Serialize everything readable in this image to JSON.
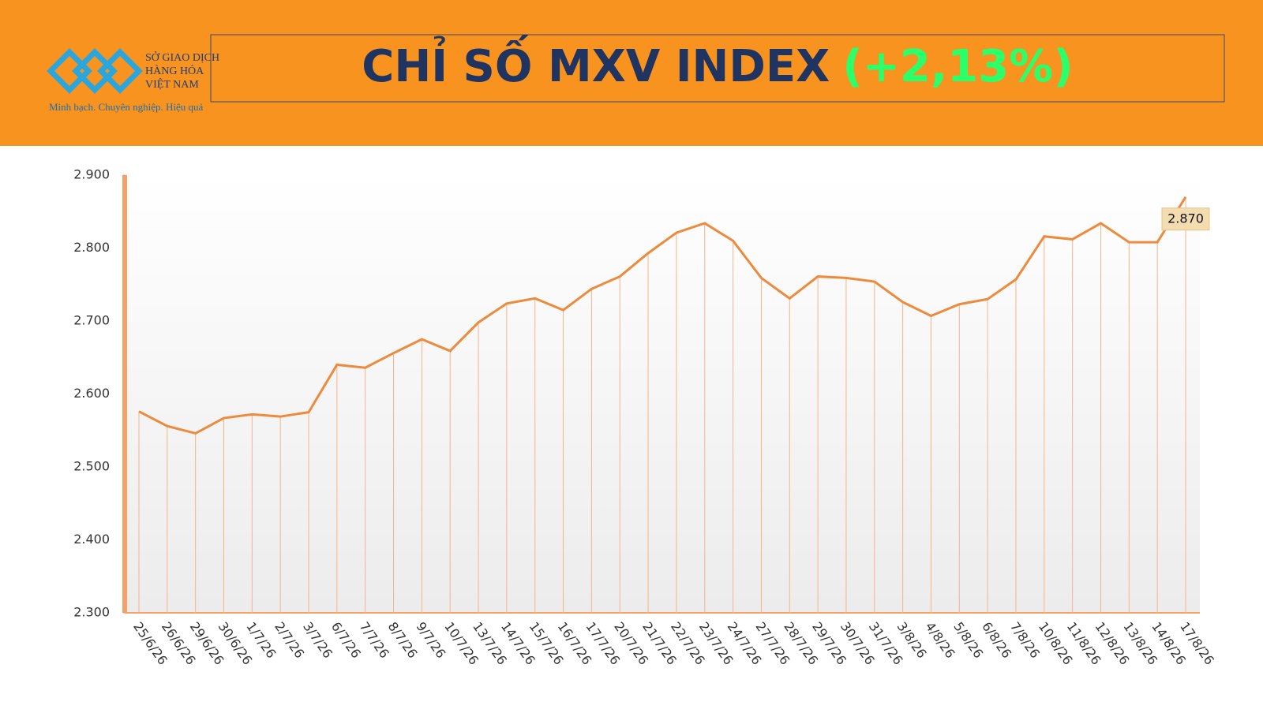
{
  "header": {
    "logo_line1": "SỞ GIAO DỊCH",
    "logo_line2": "HÀNG HÓA",
    "logo_line3": "VIỆT NAM",
    "slogan": "Minh bạch. Chuyên nghiệp. Hiệu quả"
  },
  "chart_data": {
    "type": "line",
    "title": "CHỈ SỐ MXV INDEX",
    "subtitle": "(+2,13%)",
    "color": "#ee8a3c",
    "categories": [
      "25/6/26",
      "26/6/26",
      "29/6/26",
      "30/6/26",
      "1/7/26",
      "2/7/26",
      "3/7/26",
      "6/7/26",
      "7/7/26",
      "8/7/26",
      "9/7/26",
      "10/7/26",
      "13/7/26",
      "14/7/26",
      "15/7/26",
      "16/7/26",
      "17/7/26",
      "20/7/26",
      "21/7/26",
      "22/7/26",
      "23/7/26",
      "24/7/26",
      "27/7/26",
      "28/7/26",
      "29/7/26",
      "30/7/26",
      "31/7/26",
      "3/8/26",
      "4/8/26",
      "5/8/26",
      "6/8/26",
      "7/8/26",
      "10/8/26",
      "11/8/26",
      "12/8/26",
      "13/8/26",
      "14/8/26",
      "17/8/26"
    ],
    "values": [
      2576,
      2556,
      2546,
      2567,
      2572,
      2569,
      2575,
      2640,
      2636,
      2656,
      2675,
      2659,
      2698,
      2724,
      2731,
      2715,
      2744,
      2761,
      2793,
      2821,
      2834,
      2810,
      2759,
      2731,
      2761,
      2759,
      2754,
      2726,
      2707,
      2723,
      2730,
      2757,
      2816,
      2812,
      2834,
      2808,
      2808,
      2870
    ],
    "value_labels": [
      null,
      null,
      null,
      null,
      null,
      null,
      null,
      null,
      null,
      null,
      null,
      null,
      null,
      null,
      null,
      null,
      null,
      null,
      null,
      null,
      null,
      null,
      null,
      null,
      null,
      null,
      null,
      null,
      null,
      null,
      null,
      null,
      null,
      null,
      null,
      null,
      null,
      "2.870"
    ],
    "ylim": [
      2300,
      2900
    ],
    "yticks": [
      {
        "value": 2300,
        "label": "2.300"
      },
      {
        "value": 2400,
        "label": "2.400"
      },
      {
        "value": 2500,
        "label": "2.500"
      },
      {
        "value": 2600,
        "label": "2.600"
      },
      {
        "value": 2700,
        "label": "2.700"
      },
      {
        "value": 2800,
        "label": "2.800"
      },
      {
        "value": 2900,
        "label": "2.900"
      }
    ]
  }
}
